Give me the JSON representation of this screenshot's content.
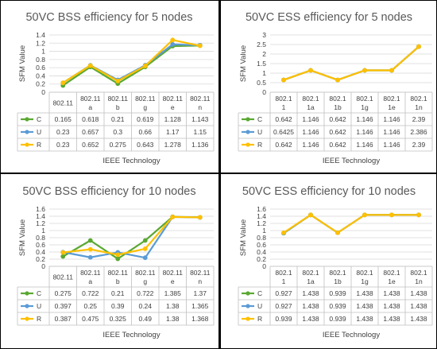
{
  "chart_data": [
    {
      "type": "line",
      "title": "50VC BSS efficiency for 5 nodes",
      "xlabel": "IEEE Technology",
      "ylabel": "SFM Value",
      "ylim": [
        0,
        1.4
      ],
      "yticks": [
        "0",
        "0.2",
        "0.4",
        "0.6",
        "0.8",
        "1",
        "1.2",
        "1.4"
      ],
      "categories": [
        [
          "802.11"
        ],
        [
          "802.11",
          "a"
        ],
        [
          "802.11",
          "b"
        ],
        [
          "802.11",
          "g"
        ],
        [
          "802.11",
          "e"
        ],
        [
          "802.11",
          "n"
        ]
      ],
      "series": [
        {
          "name": "C",
          "color": "#5aa832",
          "values": [
            0.165,
            0.618,
            0.21,
            0.619,
            1.128,
            1.143
          ],
          "labels": [
            "0.165",
            "0.618",
            "0.21",
            "0.619",
            "1.128",
            "1.143"
          ]
        },
        {
          "name": "U",
          "color": "#5b9bd5",
          "values": [
            0.23,
            0.657,
            0.3,
            0.66,
            1.17,
            1.15
          ],
          "labels": [
            "0.23",
            "0.657",
            "0.3",
            "0.66",
            "1.17",
            "1.15"
          ]
        },
        {
          "name": "R",
          "color": "#ffc000",
          "values": [
            0.23,
            0.652,
            0.275,
            0.643,
            1.278,
            1.136
          ],
          "labels": [
            "0.23",
            "0.652",
            "0.275",
            "0.643",
            "1.278",
            "1.136"
          ]
        }
      ],
      "grid": true,
      "legend": "data-table"
    },
    {
      "type": "line",
      "title": "50VC ESS efficiency for 5 nodes",
      "xlabel": "IEEE Technology",
      "ylabel": "SFM Value",
      "ylim": [
        0,
        3
      ],
      "yticks": [
        "0",
        "0.5",
        "1",
        "1.5",
        "2",
        "2.5",
        "3"
      ],
      "categories": [
        [
          "802.1",
          "1"
        ],
        [
          "802.1",
          "1a"
        ],
        [
          "802.1",
          "1b"
        ],
        [
          "802.1",
          "1g"
        ],
        [
          "802.1",
          "1e"
        ],
        [
          "802.1",
          "1n"
        ]
      ],
      "series": [
        {
          "name": "C",
          "color": "#5aa832",
          "values": [
            0.642,
            1.146,
            0.642,
            1.146,
            1.146,
            2.39
          ],
          "labels": [
            "0.642",
            "1.146",
            "0.642",
            "1.146",
            "1.146",
            "2.39"
          ]
        },
        {
          "name": "U",
          "color": "#5b9bd5",
          "values": [
            0.6425,
            1.146,
            0.642,
            1.146,
            1.146,
            2.386
          ],
          "labels": [
            "0.6425",
            "1.146",
            "0.642",
            "1.146",
            "1.146",
            "2.386"
          ]
        },
        {
          "name": "R",
          "color": "#ffc000",
          "values": [
            0.642,
            1.146,
            0.642,
            1.146,
            1.146,
            2.39
          ],
          "labels": [
            "0.642",
            "1.146",
            "0.642",
            "1.146",
            "1.146",
            "2.39"
          ]
        }
      ],
      "grid": true,
      "legend": "data-table"
    },
    {
      "type": "line",
      "title": "50VC BSS efficiency for 10 nodes",
      "xlabel": "IEEE Technology",
      "ylabel": "SFM Value",
      "ylim": [
        0,
        1.6
      ],
      "yticks": [
        "0",
        "0.2",
        "0.4",
        "0.6",
        "0.8",
        "1",
        "1.2",
        "1.4",
        "1.6"
      ],
      "categories": [
        [
          "802.11"
        ],
        [
          "802.11",
          "a"
        ],
        [
          "802.11",
          "b"
        ],
        [
          "802.11",
          "g"
        ],
        [
          "802.11",
          "e"
        ],
        [
          "802.11",
          "n"
        ]
      ],
      "series": [
        {
          "name": "C",
          "color": "#5aa832",
          "values": [
            0.275,
            0.722,
            0.21,
            0.722,
            1.385,
            1.37
          ],
          "labels": [
            "0.275",
            "0.722",
            "0.21",
            "0.722",
            "1.385",
            "1.37"
          ]
        },
        {
          "name": "U",
          "color": "#5b9bd5",
          "values": [
            0.397,
            0.25,
            0.39,
            0.24,
            1.38,
            1.365
          ],
          "labels": [
            "0.397",
            "0.25",
            "0.39",
            "0.24",
            "1.38",
            "1.365"
          ]
        },
        {
          "name": "R",
          "color": "#ffc000",
          "values": [
            0.387,
            0.475,
            0.325,
            0.49,
            1.38,
            1.368
          ],
          "labels": [
            "0.387",
            "0.475",
            "0.325",
            "0.49",
            "1.38",
            "1.368"
          ]
        }
      ],
      "grid": true,
      "legend": "data-table"
    },
    {
      "type": "line",
      "title": "50VC ESS efficiency for 10 nodes",
      "xlabel": "IEEE Technology",
      "ylabel": "SFM Value",
      "ylim": [
        0,
        1.6
      ],
      "yticks": [
        "0",
        "0.2",
        "0.4",
        "0.6",
        "0.8",
        "1",
        "1.2",
        "1.4",
        "1.6"
      ],
      "categories": [
        [
          "802.1",
          "1"
        ],
        [
          "802.1",
          "1a"
        ],
        [
          "802.1",
          "1b"
        ],
        [
          "802.1",
          "1g"
        ],
        [
          "802.1",
          "1e"
        ],
        [
          "802.1",
          "1n"
        ]
      ],
      "series": [
        {
          "name": "C",
          "color": "#5aa832",
          "values": [
            0.927,
            1.438,
            0.939,
            1.438,
            1.438,
            1.438
          ],
          "labels": [
            "0.927",
            "1.438",
            "0.939",
            "1.438",
            "1.438",
            "1.438"
          ]
        },
        {
          "name": "U",
          "color": "#5b9bd5",
          "values": [
            0.927,
            1.438,
            0.939,
            1.438,
            1.438,
            1.438
          ],
          "labels": [
            "0.927",
            "1.438",
            "0.939",
            "1.438",
            "1.438",
            "1.438"
          ]
        },
        {
          "name": "R",
          "color": "#ffc000",
          "values": [
            0.939,
            1.438,
            0.939,
            1.438,
            1.438,
            1.438
          ],
          "labels": [
            "0.939",
            "1.438",
            "0.939",
            "1.438",
            "1.438",
            "1.438"
          ]
        }
      ],
      "grid": true,
      "legend": "data-table"
    }
  ]
}
